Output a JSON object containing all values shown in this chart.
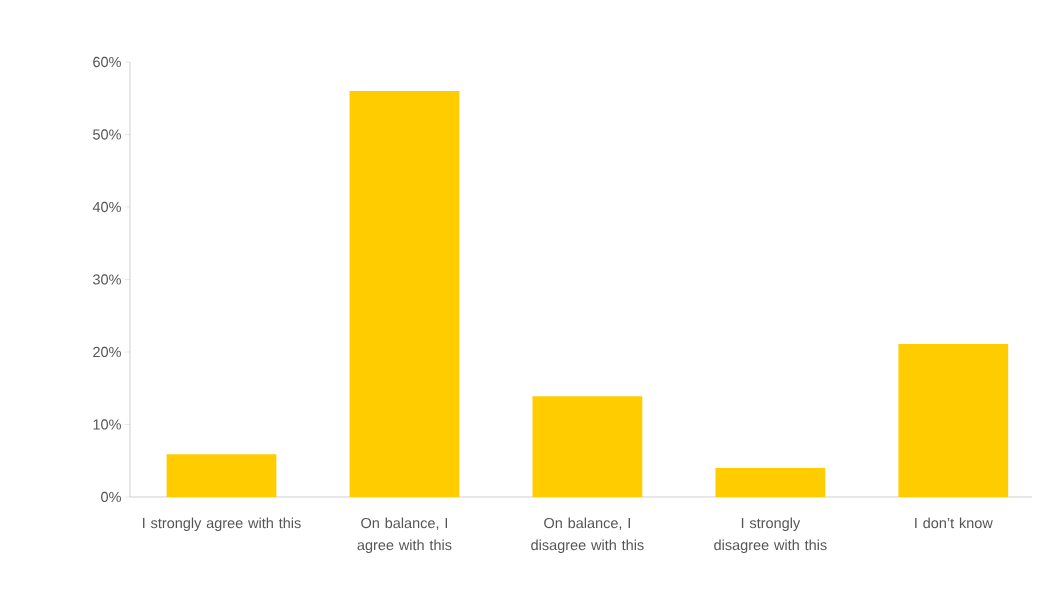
{
  "chart_data": {
    "type": "bar",
    "categories": [
      "I strongly agree with this",
      "On balance, I agree with this",
      "On balance, I disagree with this",
      "I strongly disagree with this",
      "I don’t know"
    ],
    "values": [
      5.9,
      56,
      13.9,
      4,
      21.1
    ],
    "color": "#ffcc00",
    "ylim": [
      0,
      60
    ],
    "yticks": [
      {
        "value": 0,
        "label": "0%"
      },
      {
        "value": 10,
        "label": "10%"
      },
      {
        "value": 20,
        "label": "20%"
      },
      {
        "value": 30,
        "label": "30%"
      },
      {
        "value": 40,
        "label": "40%"
      },
      {
        "value": 50,
        "label": "50%"
      },
      {
        "value": 60,
        "label": "60%"
      }
    ]
  }
}
